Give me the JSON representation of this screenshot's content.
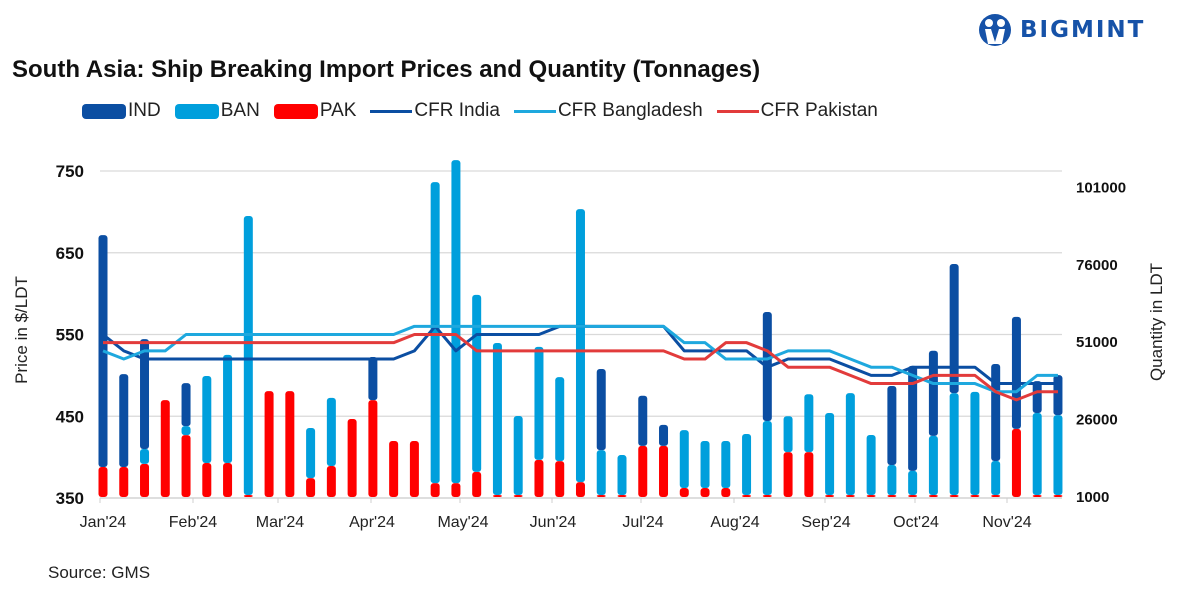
{
  "logo_text": "BIGMINT",
  "source": "Source: GMS",
  "chart_data": {
    "type": "bar+line",
    "title": "South Asia: Ship Breaking Import Prices and Quantity (Tonnages)",
    "ylabel": "Price in $/LDT",
    "y2label": "Quantity in LDT",
    "ylim": [
      350,
      750
    ],
    "y2lim": [
      1000,
      101000
    ],
    "y_ticks": [
      "350",
      "450",
      "550",
      "650",
      "750"
    ],
    "y2_ticks": [
      "1000",
      "26000",
      "51000",
      "76000",
      "101000"
    ],
    "x_tick_labels": [
      "Jan'24",
      "Feb'24",
      "Mar'24",
      "Apr'24",
      "May'24",
      "Jun'24",
      "Jul'24",
      "Aug'24",
      "Sep'24",
      "Oct'24",
      "Nov'24"
    ],
    "grid": true,
    "legend": "top",
    "colors": {
      "IND": "#0b4ea2",
      "BAN": "#009fdc",
      "PAK": "#ff0000",
      "CFR India": "#0b4ea2",
      "CFR Bangladesh": "#1ea8de",
      "CFR Pakistan": "#e23b3b"
    },
    "bar_series": [
      {
        "name": "IND",
        "axis": "right",
        "values": [
          74900,
          30000,
          35500,
          0,
          13900,
          0,
          0,
          0,
          0,
          0,
          0,
          0,
          0,
          13900,
          0,
          0,
          0,
          0,
          0,
          0,
          0,
          0,
          0,
          0,
          26200,
          0,
          16200,
          6800,
          0,
          0,
          0,
          0,
          35200,
          0,
          0,
          0,
          0,
          0,
          25500,
          33900,
          27500,
          41700,
          0,
          31300,
          36200,
          10300,
          12900
        ]
      },
      {
        "name": "BAN",
        "axis": "right",
        "values": [
          0,
          0,
          4800,
          0,
          2900,
          28100,
          34900,
          90100,
          0,
          0,
          16200,
          22000,
          0,
          0,
          0,
          0,
          97200,
          104300,
          57200,
          49100,
          25500,
          36500,
          27100,
          88200,
          14500,
          12900,
          0,
          0,
          18700,
          15200,
          15200,
          19700,
          23900,
          11600,
          18700,
          26500,
          32900,
          19400,
          9700,
          7800,
          19100,
          32900,
          33300,
          11000,
          0,
          26500,
          25800
        ]
      },
      {
        "name": "PAK",
        "axis": "right",
        "values": [
          9700,
          9700,
          10700,
          31300,
          20000,
          11000,
          11000,
          0,
          34200,
          34200,
          6100,
          10000,
          25200,
          31300,
          18100,
          18100,
          4500,
          4500,
          8100,
          0,
          0,
          12000,
          11600,
          4800,
          0,
          0,
          16500,
          16500,
          2900,
          2900,
          2900,
          0,
          0,
          14500,
          14500,
          0,
          0,
          0,
          0,
          0,
          0,
          0,
          0,
          0,
          22000,
          0,
          0
        ]
      }
    ],
    "line_series": [
      {
        "name": "CFR India",
        "axis": "left",
        "values": [
          550,
          530,
          520,
          520,
          520,
          520,
          520,
          520,
          520,
          520,
          520,
          520,
          520,
          520,
          520,
          530,
          560,
          530,
          550,
          550,
          550,
          550,
          560,
          560,
          560,
          560,
          560,
          560,
          530,
          530,
          530,
          530,
          510,
          520,
          520,
          520,
          510,
          500,
          500,
          510,
          510,
          510,
          510,
          490,
          490,
          490,
          490
        ]
      },
      {
        "name": "CFR Bangladesh",
        "axis": "left",
        "values": [
          530,
          520,
          530,
          530,
          550,
          550,
          550,
          550,
          550,
          550,
          550,
          550,
          550,
          550,
          550,
          560,
          560,
          560,
          560,
          560,
          560,
          560,
          560,
          560,
          560,
          560,
          560,
          560,
          540,
          540,
          520,
          520,
          520,
          530,
          530,
          530,
          520,
          510,
          510,
          500,
          490,
          490,
          490,
          480,
          480,
          500,
          500
        ]
      },
      {
        "name": "CFR Pakistan",
        "axis": "left",
        "values": [
          540,
          540,
          540,
          540,
          540,
          540,
          540,
          540,
          540,
          540,
          540,
          540,
          540,
          540,
          540,
          550,
          550,
          550,
          530,
          530,
          530,
          530,
          530,
          530,
          530,
          530,
          530,
          530,
          520,
          520,
          540,
          540,
          530,
          510,
          510,
          510,
          500,
          490,
          490,
          490,
          500,
          500,
          500,
          480,
          470,
          480,
          480
        ]
      }
    ]
  }
}
